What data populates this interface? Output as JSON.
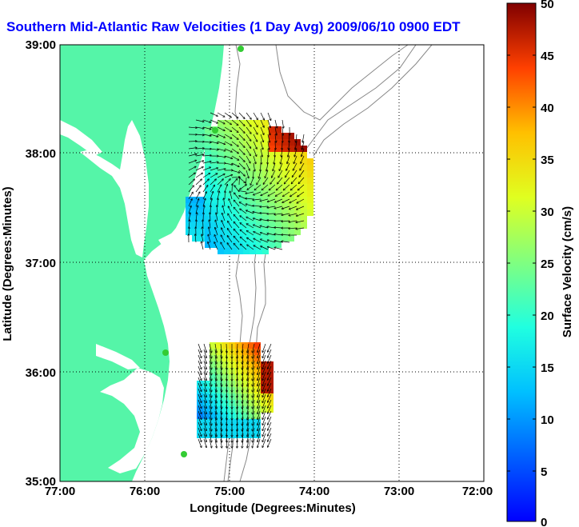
{
  "title": "Southern Mid-Atlantic Raw Velocities (1 Day Avg) 2009/06/10 0900 EDT",
  "map": {
    "xlabel": "Longitude (Degrees:Minutes)",
    "ylabel": "Latitude (Degrees:Minutes)",
    "x_ticks": [
      "77:00",
      "76:00",
      "75:00",
      "74:00",
      "73:00",
      "72:00"
    ],
    "y_ticks": [
      "39:00",
      "38:00",
      "37:00",
      "36:00",
      "35:00"
    ],
    "land_color": "#55f5a8",
    "water_color": "#ffffff",
    "grid": "dotted"
  },
  "colorbar": {
    "label": "Surface Velocity (cm/s)",
    "ticks": [
      "50",
      "45",
      "40",
      "35",
      "30",
      "25",
      "20",
      "15",
      "10",
      "5",
      "0"
    ],
    "min": 0,
    "max": 50,
    "colormap": "jet"
  }
}
